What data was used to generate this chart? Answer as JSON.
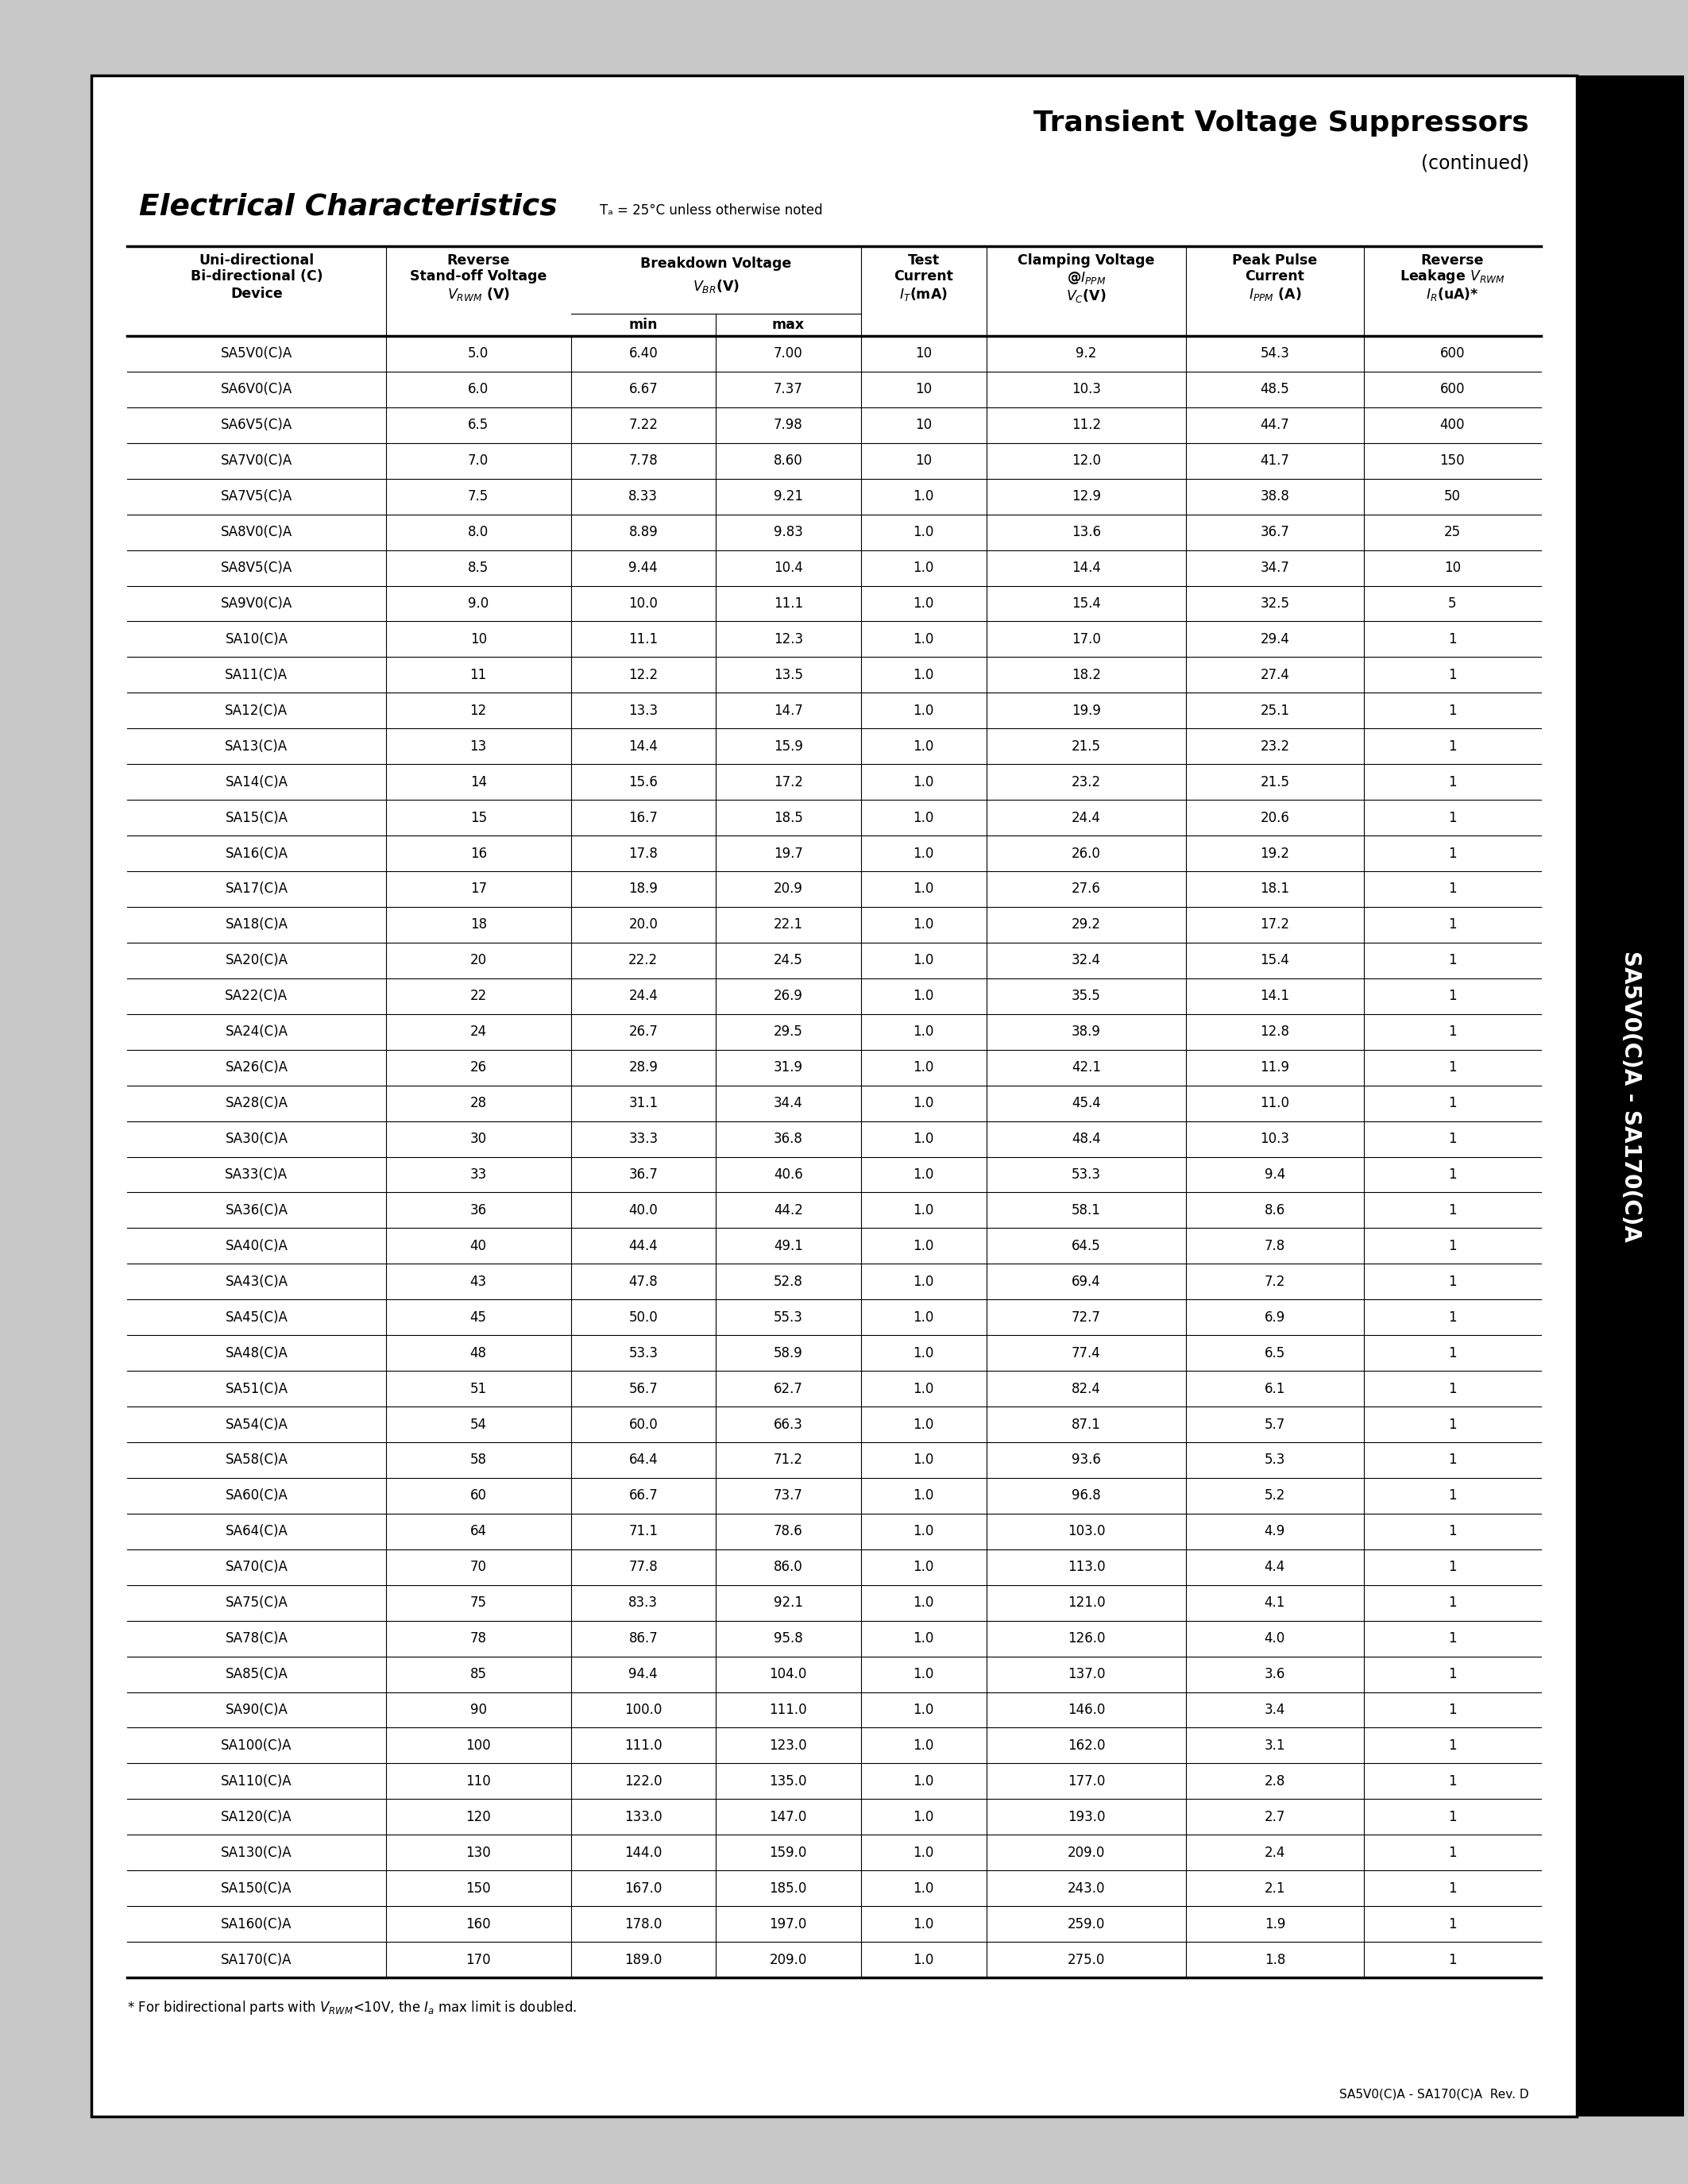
{
  "title": "Transient Voltage Suppressors",
  "subtitle": "(continued)",
  "sidebar_text": "SA5V0(C)A - SA170(C)A",
  "section_title": "Electrical Characteristics",
  "temp_note": "Tₐ = 25°C unless otherwise noted",
  "footer_text": "SA5V0(C)A - SA170(C)A  Rev. D",
  "footnote": "* For bidirectional parts with Vᴢᴡᴹ<10V, the Iₐ max limit is doubled.",
  "table_data": [
    [
      "SA5V0(C)A",
      "5.0",
      "6.40",
      "7.00",
      "10",
      "9.2",
      "54.3",
      "600"
    ],
    [
      "SA6V0(C)A",
      "6.0",
      "6.67",
      "7.37",
      "10",
      "10.3",
      "48.5",
      "600"
    ],
    [
      "SA6V5(C)A",
      "6.5",
      "7.22",
      "7.98",
      "10",
      "11.2",
      "44.7",
      "400"
    ],
    [
      "SA7V0(C)A",
      "7.0",
      "7.78",
      "8.60",
      "10",
      "12.0",
      "41.7",
      "150"
    ],
    [
      "SA7V5(C)A",
      "7.5",
      "8.33",
      "9.21",
      "1.0",
      "12.9",
      "38.8",
      "50"
    ],
    [
      "SA8V0(C)A",
      "8.0",
      "8.89",
      "9.83",
      "1.0",
      "13.6",
      "36.7",
      "25"
    ],
    [
      "SA8V5(C)A",
      "8.5",
      "9.44",
      "10.4",
      "1.0",
      "14.4",
      "34.7",
      "10"
    ],
    [
      "SA9V0(C)A",
      "9.0",
      "10.0",
      "11.1",
      "1.0",
      "15.4",
      "32.5",
      "5"
    ],
    [
      "SA10(C)A",
      "10",
      "11.1",
      "12.3",
      "1.0",
      "17.0",
      "29.4",
      "1"
    ],
    [
      "SA11(C)A",
      "11",
      "12.2",
      "13.5",
      "1.0",
      "18.2",
      "27.4",
      "1"
    ],
    [
      "SA12(C)A",
      "12",
      "13.3",
      "14.7",
      "1.0",
      "19.9",
      "25.1",
      "1"
    ],
    [
      "SA13(C)A",
      "13",
      "14.4",
      "15.9",
      "1.0",
      "21.5",
      "23.2",
      "1"
    ],
    [
      "SA14(C)A",
      "14",
      "15.6",
      "17.2",
      "1.0",
      "23.2",
      "21.5",
      "1"
    ],
    [
      "SA15(C)A",
      "15",
      "16.7",
      "18.5",
      "1.0",
      "24.4",
      "20.6",
      "1"
    ],
    [
      "SA16(C)A",
      "16",
      "17.8",
      "19.7",
      "1.0",
      "26.0",
      "19.2",
      "1"
    ],
    [
      "SA17(C)A",
      "17",
      "18.9",
      "20.9",
      "1.0",
      "27.6",
      "18.1",
      "1"
    ],
    [
      "SA18(C)A",
      "18",
      "20.0",
      "22.1",
      "1.0",
      "29.2",
      "17.2",
      "1"
    ],
    [
      "SA20(C)A",
      "20",
      "22.2",
      "24.5",
      "1.0",
      "32.4",
      "15.4",
      "1"
    ],
    [
      "SA22(C)A",
      "22",
      "24.4",
      "26.9",
      "1.0",
      "35.5",
      "14.1",
      "1"
    ],
    [
      "SA24(C)A",
      "24",
      "26.7",
      "29.5",
      "1.0",
      "38.9",
      "12.8",
      "1"
    ],
    [
      "SA26(C)A",
      "26",
      "28.9",
      "31.9",
      "1.0",
      "42.1",
      "11.9",
      "1"
    ],
    [
      "SA28(C)A",
      "28",
      "31.1",
      "34.4",
      "1.0",
      "45.4",
      "11.0",
      "1"
    ],
    [
      "SA30(C)A",
      "30",
      "33.3",
      "36.8",
      "1.0",
      "48.4",
      "10.3",
      "1"
    ],
    [
      "SA33(C)A",
      "33",
      "36.7",
      "40.6",
      "1.0",
      "53.3",
      "9.4",
      "1"
    ],
    [
      "SA36(C)A",
      "36",
      "40.0",
      "44.2",
      "1.0",
      "58.1",
      "8.6",
      "1"
    ],
    [
      "SA40(C)A",
      "40",
      "44.4",
      "49.1",
      "1.0",
      "64.5",
      "7.8",
      "1"
    ],
    [
      "SA43(C)A",
      "43",
      "47.8",
      "52.8",
      "1.0",
      "69.4",
      "7.2",
      "1"
    ],
    [
      "SA45(C)A",
      "45",
      "50.0",
      "55.3",
      "1.0",
      "72.7",
      "6.9",
      "1"
    ],
    [
      "SA48(C)A",
      "48",
      "53.3",
      "58.9",
      "1.0",
      "77.4",
      "6.5",
      "1"
    ],
    [
      "SA51(C)A",
      "51",
      "56.7",
      "62.7",
      "1.0",
      "82.4",
      "6.1",
      "1"
    ],
    [
      "SA54(C)A",
      "54",
      "60.0",
      "66.3",
      "1.0",
      "87.1",
      "5.7",
      "1"
    ],
    [
      "SA58(C)A",
      "58",
      "64.4",
      "71.2",
      "1.0",
      "93.6",
      "5.3",
      "1"
    ],
    [
      "SA60(C)A",
      "60",
      "66.7",
      "73.7",
      "1.0",
      "96.8",
      "5.2",
      "1"
    ],
    [
      "SA64(C)A",
      "64",
      "71.1",
      "78.6",
      "1.0",
      "103.0",
      "4.9",
      "1"
    ],
    [
      "SA70(C)A",
      "70",
      "77.8",
      "86.0",
      "1.0",
      "113.0",
      "4.4",
      "1"
    ],
    [
      "SA75(C)A",
      "75",
      "83.3",
      "92.1",
      "1.0",
      "121.0",
      "4.1",
      "1"
    ],
    [
      "SA78(C)A",
      "78",
      "86.7",
      "95.8",
      "1.0",
      "126.0",
      "4.0",
      "1"
    ],
    [
      "SA85(C)A",
      "85",
      "94.4",
      "104.0",
      "1.0",
      "137.0",
      "3.6",
      "1"
    ],
    [
      "SA90(C)A",
      "90",
      "100.0",
      "111.0",
      "1.0",
      "146.0",
      "3.4",
      "1"
    ],
    [
      "SA100(C)A",
      "100",
      "111.0",
      "123.0",
      "1.0",
      "162.0",
      "3.1",
      "1"
    ],
    [
      "SA110(C)A",
      "110",
      "122.0",
      "135.0",
      "1.0",
      "177.0",
      "2.8",
      "1"
    ],
    [
      "SA120(C)A",
      "120",
      "133.0",
      "147.0",
      "1.0",
      "193.0",
      "2.7",
      "1"
    ],
    [
      "SA130(C)A",
      "130",
      "144.0",
      "159.0",
      "1.0",
      "209.0",
      "2.4",
      "1"
    ],
    [
      "SA150(C)A",
      "150",
      "167.0",
      "185.0",
      "1.0",
      "243.0",
      "2.1",
      "1"
    ],
    [
      "SA160(C)A",
      "160",
      "178.0",
      "197.0",
      "1.0",
      "259.0",
      "1.9",
      "1"
    ],
    [
      "SA170(C)A",
      "170",
      "189.0",
      "209.0",
      "1.0",
      "275.0",
      "1.8",
      "1"
    ]
  ],
  "bg_color": "#ffffff",
  "text_color": "#000000",
  "page_bg": "#e0e0e0"
}
